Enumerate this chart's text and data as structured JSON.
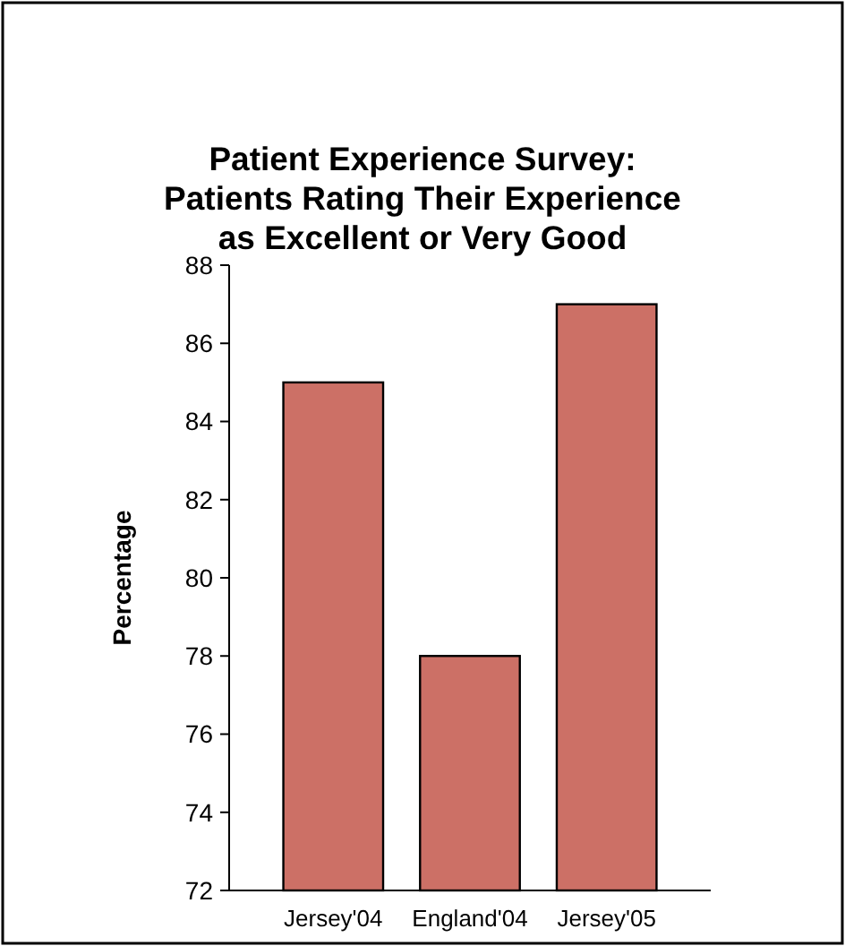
{
  "chart_data": {
    "type": "bar",
    "title": "Patient Experience Survey: Patients Rating Their Experience as Excellent or Very Good",
    "ylabel": "Percentage",
    "categories": [
      "Jersey'04",
      "England'04",
      "Jersey'05"
    ],
    "values": [
      85,
      78,
      87
    ],
    "color": "#cc7066",
    "ylim": [
      72,
      88
    ],
    "yticks": [
      72,
      74,
      76,
      78,
      80,
      82,
      84,
      86,
      88
    ],
    "grid": false
  }
}
